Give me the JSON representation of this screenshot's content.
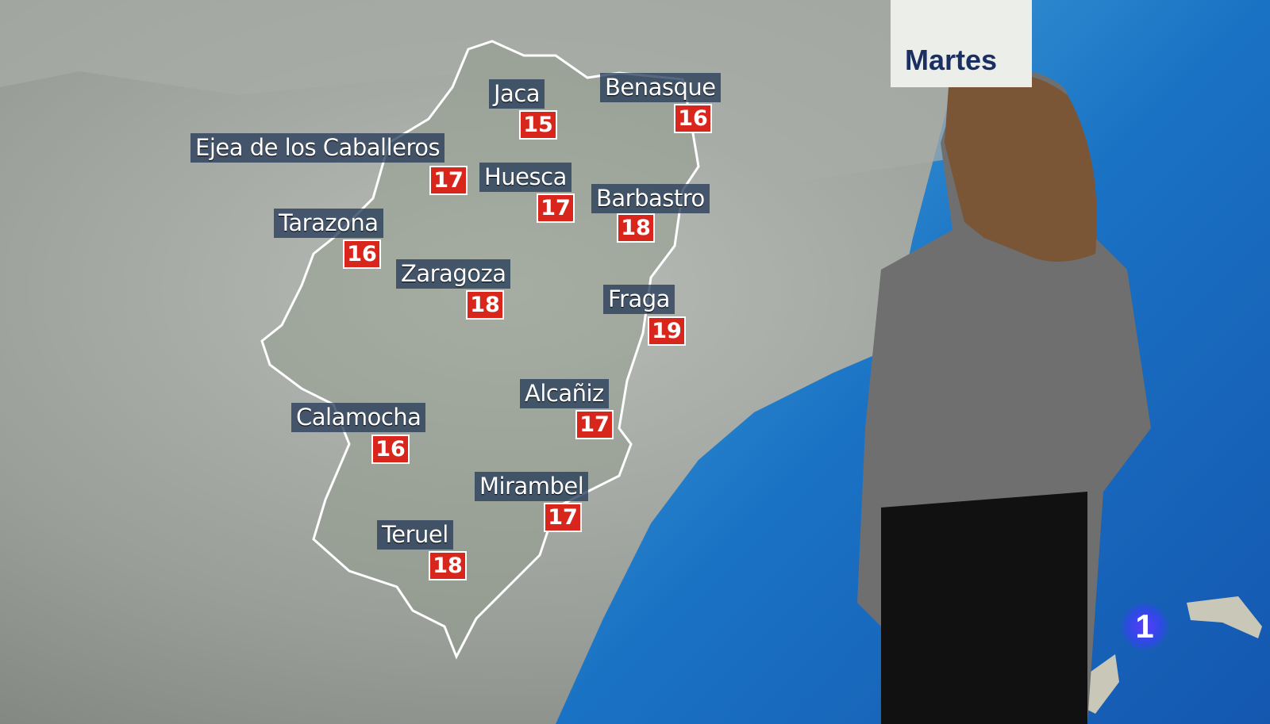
{
  "broadcast": {
    "day_label": "Martes",
    "channel_logo": "1"
  },
  "colors": {
    "temp_box": "#d9261c",
    "label_box": "#283c5a",
    "sea": "#1a6fc0",
    "day_text": "#1b2f63"
  },
  "cities": [
    {
      "name": "Jaca",
      "temp": "15"
    },
    {
      "name": "Benasque",
      "temp": "16"
    },
    {
      "name": "Ejea de los Caballeros",
      "temp": "17"
    },
    {
      "name": "Huesca",
      "temp": "17"
    },
    {
      "name": "Barbastro",
      "temp": "18"
    },
    {
      "name": "Tarazona",
      "temp": "16"
    },
    {
      "name": "Zaragoza",
      "temp": "18"
    },
    {
      "name": "Fraga",
      "temp": "19"
    },
    {
      "name": "Alcañiz",
      "temp": "17"
    },
    {
      "name": "Calamocha",
      "temp": "16"
    },
    {
      "name": "Mirambel",
      "temp": "17"
    },
    {
      "name": "Teruel",
      "temp": "18"
    }
  ]
}
